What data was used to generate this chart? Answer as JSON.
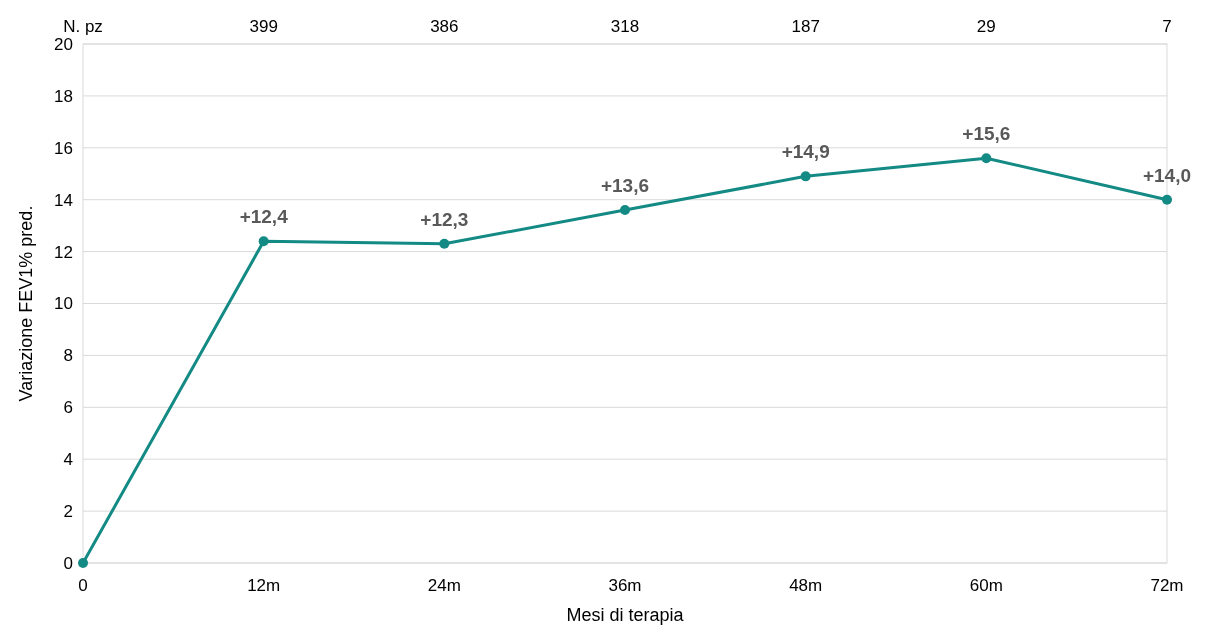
{
  "chart_data": {
    "type": "line",
    "xlabel": "Mesi di terapia",
    "ylabel": "Variazione FEV1% pred.",
    "x": [
      0,
      12,
      24,
      36,
      48,
      60,
      72
    ],
    "series": [
      {
        "color": "#138a84",
        "values": [
          0,
          12.4,
          12.3,
          13.6,
          14.9,
          15.6,
          14.0
        ],
        "value_labels": [
          null,
          "+12,4",
          "+12,3",
          "+13,6",
          "+14,9",
          "+15,6",
          "+14,0"
        ]
      }
    ],
    "xlim": [
      0,
      72
    ],
    "xticks": [
      0,
      {
        "value": 12,
        "label": "12m"
      },
      {
        "value": 24,
        "label": "24m"
      },
      {
        "value": 36,
        "label": "36m"
      },
      {
        "value": 48,
        "label": "48m"
      },
      {
        "value": 60,
        "label": "60m"
      },
      {
        "value": 72,
        "label": "72m"
      }
    ],
    "annotations": [
      "N. pz",
      "399",
      "386",
      "318",
      "187",
      "29",
      "7"
    ],
    "ylim": [
      0,
      20
    ],
    "yticks": [
      0,
      2,
      4,
      6,
      8,
      10,
      12,
      14,
      16,
      18,
      20
    ],
    "grid": "y",
    "marker": "circle",
    "line_style": "solid"
  }
}
